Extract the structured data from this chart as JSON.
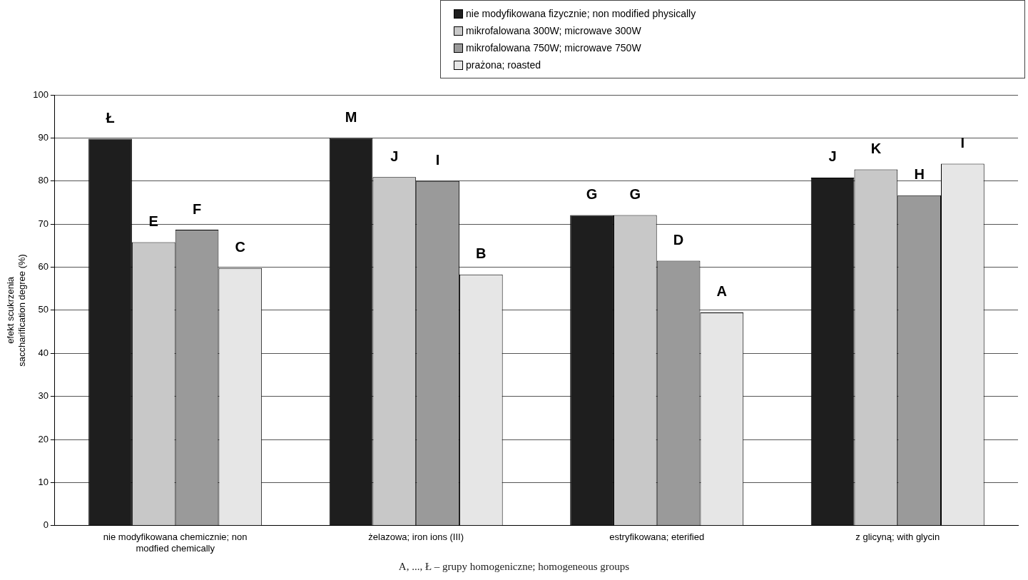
{
  "chart_data": {
    "type": "bar",
    "ylabel": "efekt scukrzenia\nsaccharification degree (%)",
    "categories": [
      "nie modyfikowana chemicznie; non modfied chemically",
      "żelazowa; iron ions (III)",
      "estryfikowana; eterified",
      "z glicyną; with glycin"
    ],
    "series": [
      {
        "name": "nie modyfikowana fizycznie; non modified physically",
        "color": "#1e1e1e",
        "values": [
          89.8,
          90,
          72.1,
          80.8
        ],
        "value_labels": [
          "Ł",
          "M",
          "G",
          "J"
        ]
      },
      {
        "name": "mikrofalowana 300W; microwave 300W",
        "color": "#c8c8c8",
        "values": [
          65.8,
          80.9,
          72.1,
          82.7
        ],
        "value_labels": [
          "E",
          "J",
          "G",
          "K"
        ]
      },
      {
        "name": "mikrofalowana 750W; microwave 750W",
        "color": "#9a9a9a",
        "values": [
          68.7,
          80,
          61.5,
          76.7
        ],
        "value_labels": [
          "F",
          "I",
          "D",
          "H"
        ]
      },
      {
        "name": "prażona; roasted",
        "color": "#e6e6e6",
        "values": [
          59.8,
          58.3,
          49.5,
          84
        ],
        "value_labels": [
          "C",
          "B",
          "A",
          "I"
        ]
      }
    ],
    "ylim": [
      0,
      100
    ],
    "yticks": [
      0,
      10,
      20,
      30,
      40,
      50,
      60,
      70,
      80,
      90,
      100
    ],
    "grid": "y",
    "legend": "top right",
    "annotations": [
      "A, ..., Ł – grupy homogeniczne; homogeneous groups"
    ]
  }
}
